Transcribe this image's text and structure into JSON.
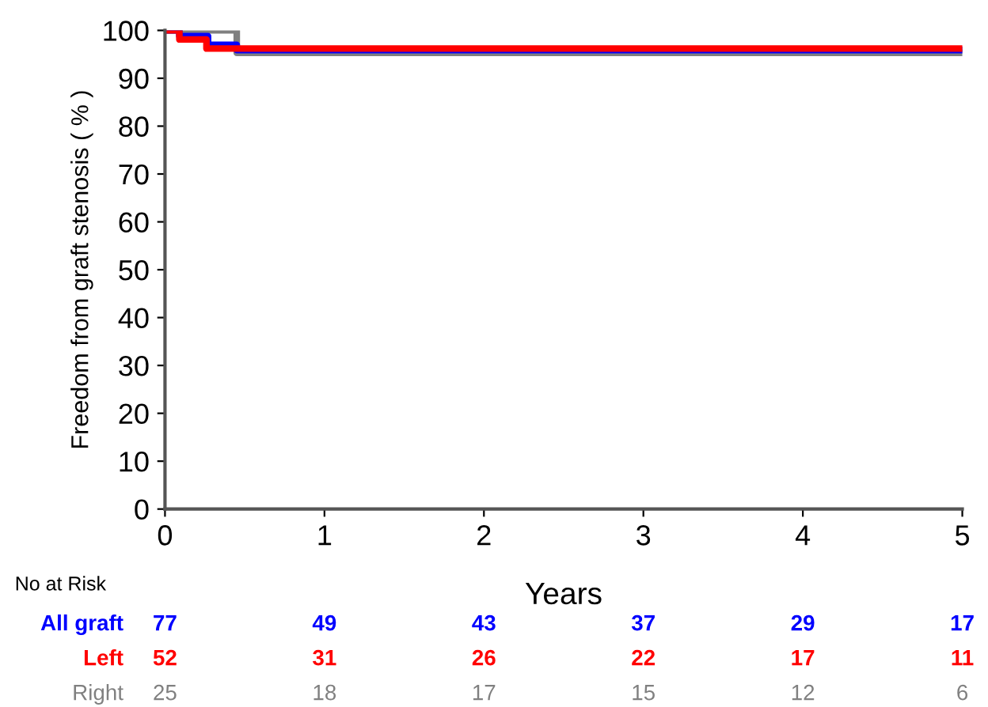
{
  "chart_data": {
    "type": "step",
    "xlabel": "Years",
    "ylabel": "Freedom from graft stenosis ( % )",
    "xlim": [
      0,
      5
    ],
    "xticks": [
      0,
      1,
      2,
      3,
      4,
      5
    ],
    "ylim": [
      0,
      100
    ],
    "yticks": [
      0,
      10,
      20,
      30,
      40,
      50,
      60,
      70,
      80,
      90,
      100
    ],
    "grid": false,
    "legend": false,
    "series": [
      {
        "name": "Right",
        "color": "#808080",
        "x": [
          0,
          0.45,
          5
        ],
        "values": [
          100,
          95.3,
          95.3
        ]
      },
      {
        "name": "All graft",
        "color": "#0000ff",
        "x": [
          0,
          0.09,
          0.27,
          0.45,
          5
        ],
        "values": [
          100,
          98.8,
          97.0,
          95.9,
          95.9
        ]
      },
      {
        "name": "Left",
        "color": "#ff0000",
        "x": [
          0,
          0.09,
          0.26,
          5
        ],
        "values": [
          100,
          98.1,
          96.2,
          96.2
        ]
      }
    ],
    "annotations": [
      "No at Risk",
      "77",
      "49",
      "43",
      "37",
      "29",
      "17",
      "52",
      "31",
      "26",
      "22",
      "17",
      "11",
      "25",
      "18",
      "17",
      "15",
      "12",
      "6"
    ]
  }
}
